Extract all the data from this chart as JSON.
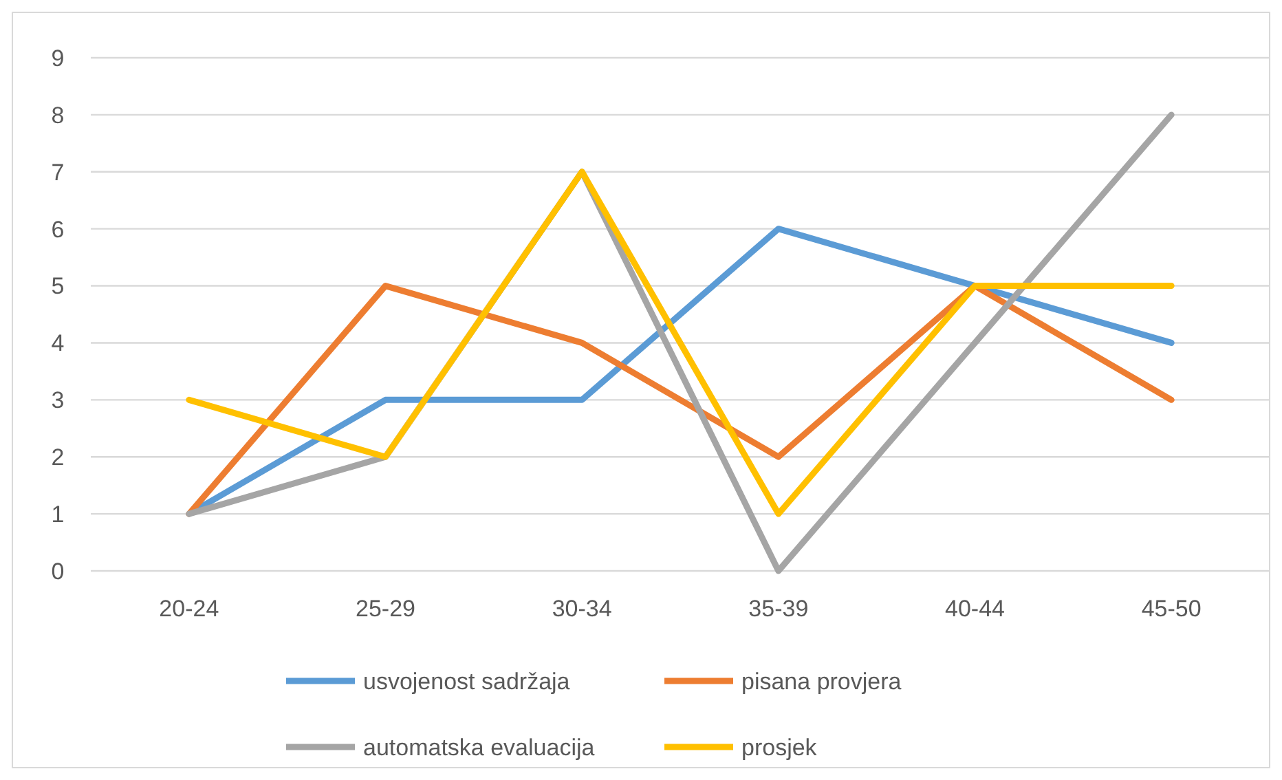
{
  "chart_data": {
    "type": "line",
    "categories": [
      "20-24",
      "25-29",
      "30-34",
      "35-39",
      "40-44",
      "45-50"
    ],
    "series": [
      {
        "name": "usvojenost sadržaja",
        "color": "#5b9bd5",
        "values": [
          1,
          3,
          3,
          6,
          5,
          4
        ]
      },
      {
        "name": "pisana provjera",
        "color": "#ed7d31",
        "values": [
          1,
          5,
          4,
          2,
          5,
          3
        ]
      },
      {
        "name": "automatska evaluacija",
        "color": "#a5a5a5",
        "values": [
          1,
          2,
          7,
          0,
          4,
          8
        ]
      },
      {
        "name": "prosjek",
        "color": "#ffc000",
        "values": [
          3,
          2,
          7,
          1,
          5,
          5
        ]
      }
    ],
    "ylim": [
      0,
      9
    ],
    "yticks": [
      0,
      1,
      2,
      3,
      4,
      5,
      6,
      7,
      8,
      9
    ],
    "grid": "y",
    "legend": "bottom",
    "marker": "none",
    "line_style": "solid"
  }
}
